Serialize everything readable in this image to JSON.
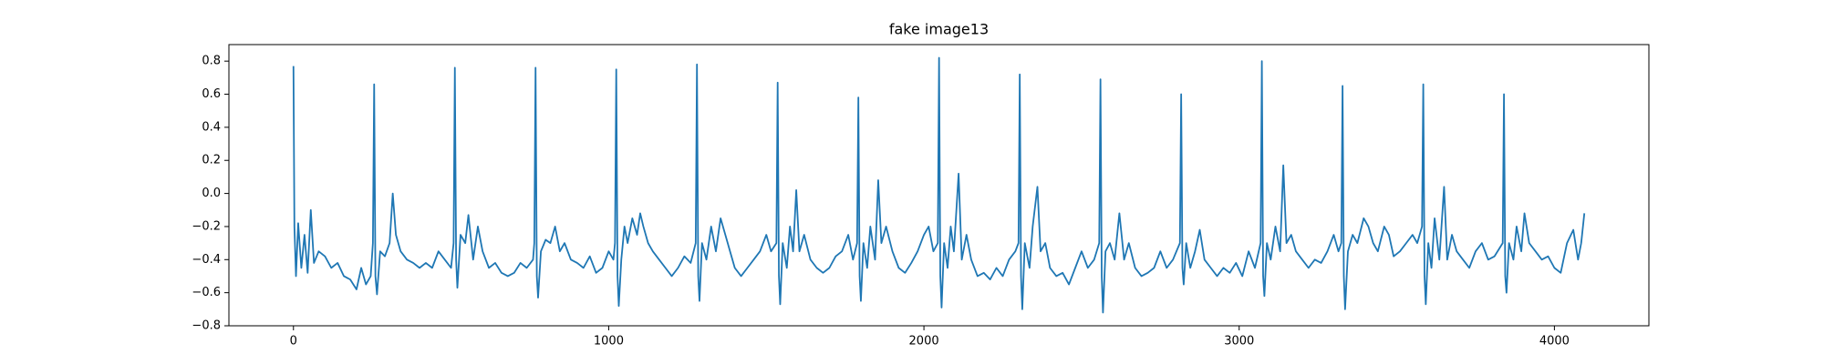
{
  "chart_data": {
    "type": "line",
    "title": "fake image13",
    "color": "#1f77b4",
    "xlim": [
      -204.75,
      4299.75
    ],
    "ylim": [
      -0.8,
      0.9
    ],
    "xticks": [
      0,
      1000,
      2000,
      3000,
      4000
    ],
    "yticks": [
      {
        "value": -0.8,
        "label": "−0.8"
      },
      {
        "value": -0.6,
        "label": "−0.6"
      },
      {
        "value": -0.4,
        "label": "−0.4"
      },
      {
        "value": -0.2,
        "label": "−0.2"
      },
      {
        "value": 0.0,
        "label": "0.0"
      },
      0.2,
      0.4,
      0.6,
      0.8
    ],
    "x": [
      0,
      3,
      8,
      15,
      25,
      35,
      45,
      55,
      65,
      80,
      100,
      120,
      140,
      160,
      180,
      200,
      215,
      230,
      245,
      252,
      256,
      260,
      265,
      275,
      290,
      305,
      315,
      325,
      340,
      360,
      380,
      400,
      420,
      440,
      460,
      480,
      500,
      508,
      512,
      516,
      520,
      530,
      545,
      555,
      570,
      585,
      600,
      620,
      640,
      660,
      680,
      700,
      720,
      740,
      760,
      764,
      768,
      772,
      776,
      785,
      800,
      815,
      830,
      845,
      860,
      880,
      900,
      920,
      940,
      960,
      980,
      1000,
      1015,
      1020,
      1024,
      1028,
      1032,
      1040,
      1050,
      1060,
      1075,
      1090,
      1100,
      1110,
      1125,
      1140,
      1160,
      1180,
      1200,
      1220,
      1240,
      1260,
      1276,
      1280,
      1284,
      1288,
      1296,
      1310,
      1325,
      1340,
      1355,
      1370,
      1385,
      1400,
      1420,
      1440,
      1460,
      1480,
      1500,
      1515,
      1532,
      1536,
      1540,
      1544,
      1552,
      1565,
      1575,
      1585,
      1595,
      1605,
      1620,
      1640,
      1660,
      1680,
      1700,
      1720,
      1740,
      1760,
      1775,
      1788,
      1792,
      1796,
      1800,
      1808,
      1820,
      1830,
      1845,
      1855,
      1865,
      1880,
      1900,
      1920,
      1940,
      1960,
      1980,
      2000,
      2015,
      2030,
      2044,
      2048,
      2052,
      2056,
      2064,
      2075,
      2085,
      2095,
      2110,
      2120,
      2135,
      2150,
      2170,
      2190,
      2210,
      2230,
      2250,
      2270,
      2290,
      2300,
      2304,
      2308,
      2312,
      2320,
      2335,
      2345,
      2360,
      2370,
      2385,
      2400,
      2420,
      2440,
      2460,
      2480,
      2500,
      2520,
      2540,
      2556,
      2560,
      2564,
      2568,
      2576,
      2590,
      2605,
      2620,
      2635,
      2650,
      2670,
      2690,
      2710,
      2730,
      2750,
      2770,
      2790,
      2812,
      2816,
      2820,
      2824,
      2832,
      2845,
      2860,
      2875,
      2890,
      2910,
      2930,
      2950,
      2970,
      2990,
      3010,
      3030,
      3050,
      3068,
      3072,
      3076,
      3080,
      3088,
      3100,
      3115,
      3130,
      3140,
      3150,
      3165,
      3180,
      3200,
      3220,
      3240,
      3260,
      3280,
      3300,
      3315,
      3324,
      3328,
      3332,
      3336,
      3345,
      3360,
      3375,
      3395,
      3410,
      3425,
      3440,
      3460,
      3475,
      3490,
      3510,
      3530,
      3550,
      3565,
      3580,
      3584,
      3588,
      3592,
      3600,
      3610,
      3620,
      3635,
      3650,
      3660,
      3675,
      3690,
      3710,
      3730,
      3750,
      3770,
      3790,
      3810,
      3836,
      3840,
      3844,
      3848,
      3856,
      3870,
      3880,
      3895,
      3905,
      3920,
      3940,
      3960,
      3980,
      4000,
      4020,
      4040,
      4060,
      4075,
      4085,
      4095
    ],
    "values": [
      0.77,
      -0.2,
      -0.5,
      -0.18,
      -0.45,
      -0.25,
      -0.48,
      -0.1,
      -0.42,
      -0.35,
      -0.38,
      -0.45,
      -0.42,
      -0.5,
      -0.52,
      -0.58,
      -0.45,
      -0.55,
      -0.5,
      -0.3,
      0.66,
      -0.5,
      -0.61,
      -0.35,
      -0.38,
      -0.3,
      0.0,
      -0.25,
      -0.35,
      -0.4,
      -0.42,
      -0.45,
      -0.42,
      -0.45,
      -0.35,
      -0.4,
      -0.45,
      -0.3,
      0.76,
      -0.4,
      -0.57,
      -0.25,
      -0.3,
      -0.13,
      -0.4,
      -0.2,
      -0.35,
      -0.45,
      -0.42,
      -0.48,
      -0.5,
      -0.48,
      -0.42,
      -0.45,
      -0.4,
      -0.3,
      0.76,
      -0.5,
      -0.63,
      -0.35,
      -0.28,
      -0.3,
      -0.2,
      -0.35,
      -0.3,
      -0.4,
      -0.42,
      -0.45,
      -0.38,
      -0.48,
      -0.45,
      -0.35,
      -0.4,
      -0.3,
      0.75,
      -0.5,
      -0.68,
      -0.4,
      -0.2,
      -0.3,
      -0.15,
      -0.25,
      -0.12,
      -0.2,
      -0.3,
      -0.35,
      -0.4,
      -0.45,
      -0.5,
      -0.45,
      -0.38,
      -0.42,
      -0.3,
      0.78,
      -0.5,
      -0.65,
      -0.3,
      -0.4,
      -0.2,
      -0.35,
      -0.15,
      -0.25,
      -0.35,
      -0.45,
      -0.5,
      -0.45,
      -0.4,
      -0.35,
      -0.25,
      -0.35,
      -0.3,
      0.67,
      -0.5,
      -0.67,
      -0.3,
      -0.45,
      -0.2,
      -0.35,
      0.02,
      -0.35,
      -0.25,
      -0.4,
      -0.45,
      -0.48,
      -0.45,
      -0.38,
      -0.35,
      -0.25,
      -0.4,
      -0.3,
      0.58,
      -0.5,
      -0.65,
      -0.3,
      -0.45,
      -0.2,
      -0.4,
      0.08,
      -0.3,
      -0.2,
      -0.35,
      -0.45,
      -0.48,
      -0.42,
      -0.35,
      -0.25,
      -0.2,
      -0.35,
      -0.3,
      0.82,
      -0.5,
      -0.69,
      -0.3,
      -0.45,
      -0.2,
      -0.35,
      0.12,
      -0.4,
      -0.25,
      -0.4,
      -0.5,
      -0.48,
      -0.52,
      -0.45,
      -0.5,
      -0.4,
      -0.35,
      -0.3,
      0.72,
      -0.5,
      -0.7,
      -0.3,
      -0.45,
      -0.2,
      0.04,
      -0.35,
      -0.3,
      -0.45,
      -0.5,
      -0.48,
      -0.55,
      -0.45,
      -0.35,
      -0.45,
      -0.4,
      -0.3,
      0.69,
      -0.5,
      -0.72,
      -0.35,
      -0.3,
      -0.4,
      -0.12,
      -0.4,
      -0.3,
      -0.45,
      -0.5,
      -0.48,
      -0.45,
      -0.35,
      -0.45,
      -0.4,
      -0.3,
      0.6,
      -0.45,
      -0.55,
      -0.3,
      -0.45,
      -0.35,
      -0.22,
      -0.4,
      -0.45,
      -0.5,
      -0.45,
      -0.48,
      -0.42,
      -0.5,
      -0.35,
      -0.45,
      -0.3,
      0.8,
      -0.5,
      -0.62,
      -0.3,
      -0.4,
      -0.2,
      -0.35,
      0.17,
      -0.3,
      -0.25,
      -0.35,
      -0.4,
      -0.45,
      -0.4,
      -0.42,
      -0.35,
      -0.25,
      -0.35,
      -0.3,
      0.65,
      -0.5,
      -0.7,
      -0.35,
      -0.25,
      -0.3,
      -0.15,
      -0.2,
      -0.3,
      -0.35,
      -0.2,
      -0.25,
      -0.38,
      -0.35,
      -0.3,
      -0.25,
      -0.3,
      -0.2,
      0.66,
      -0.5,
      -0.67,
      -0.3,
      -0.45,
      -0.15,
      -0.4,
      0.04,
      -0.4,
      -0.25,
      -0.35,
      -0.4,
      -0.45,
      -0.35,
      -0.3,
      -0.4,
      -0.38,
      -0.3,
      0.6,
      -0.5,
      -0.6,
      -0.3,
      -0.4,
      -0.2,
      -0.35,
      -0.12,
      -0.3,
      -0.35,
      -0.4,
      -0.38,
      -0.45,
      -0.48,
      -0.3,
      -0.22,
      -0.4,
      -0.3,
      -0.12
    ]
  }
}
